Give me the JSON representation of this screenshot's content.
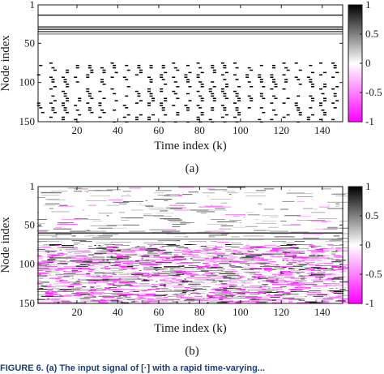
{
  "chart_data": [
    {
      "type": "heatmap",
      "panel_label": "(a)",
      "xlabel": "Time index (k)",
      "ylabel": "Node index",
      "xlim": [
        1,
        150
      ],
      "ylim": [
        1,
        150
      ],
      "y_reversed": true,
      "x_ticks": [
        20,
        40,
        60,
        80,
        100,
        120,
        140
      ],
      "y_ticks": [
        1,
        50,
        100,
        150
      ],
      "colorbar": {
        "range": [
          -1,
          1
        ],
        "ticks": [
          1,
          0.5,
          0,
          -0.5,
          -1
        ],
        "colors": {
          "min": "#ff00ff",
          "mid": "#ffffff",
          "max": "#000000"
        }
      },
      "constant_rows": [
        {
          "node": 14,
          "value": 1
        },
        {
          "node": 29,
          "value": 1
        },
        {
          "node": 32,
          "value": 1
        },
        {
          "node": 35,
          "value": 0.9
        },
        {
          "node": 38,
          "value": 0.5
        }
      ],
      "periodic_rows": {
        "node_range": [
          75,
          150
        ],
        "period": 6,
        "value": 1
      }
    },
    {
      "type": "heatmap",
      "panel_label": "(b)",
      "xlabel": "Time index (k)",
      "ylabel": "Node index",
      "xlim": [
        1,
        150
      ],
      "ylim": [
        1,
        150
      ],
      "y_reversed": true,
      "x_ticks": [
        20,
        40,
        60,
        80,
        100,
        120,
        140
      ],
      "y_ticks": [
        1,
        50,
        100,
        150
      ],
      "colorbar": {
        "range": [
          -1,
          1
        ],
        "ticks": [
          1,
          0.5,
          0,
          -0.5,
          -1
        ],
        "colors": {
          "min": "#ff00ff",
          "mid": "#ffffff",
          "max": "#000000"
        }
      },
      "constant_rows": [
        {
          "node": 60,
          "value": 0.9
        },
        {
          "node": 68,
          "value": 0.5
        }
      ],
      "noise_region_node_range": [
        1,
        150
      ]
    }
  ],
  "caption_text": "FIGURE 6. (a) The input signal of [·] with a rapid time-varying..."
}
